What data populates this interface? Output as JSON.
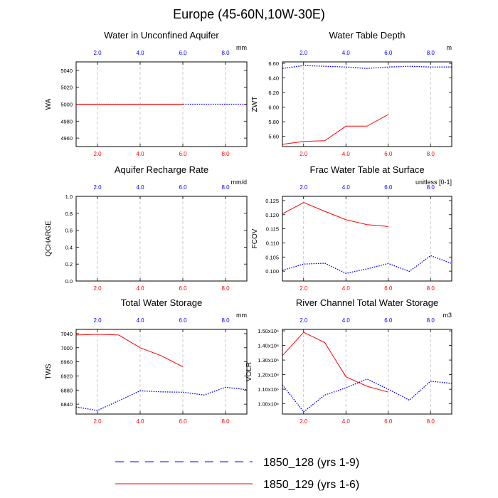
{
  "figure": {
    "title": "Europe (45-60N,10W-30E)"
  },
  "colors": {
    "red": "#ff0000",
    "blue": "#0000ff",
    "grid": "#bbbbbb"
  },
  "legend": {
    "items": [
      {
        "label": "1850_128 (yrs 1-9)",
        "style": "dashed",
        "color": "#0000ff"
      },
      {
        "label": "1850_129 (yrs 1-6)",
        "style": "solid",
        "color": "#ff0000"
      }
    ]
  },
  "chart_data": [
    {
      "type": "line",
      "title": "Water in Unconfined Aquifer",
      "ylabel": "WA",
      "units": "mm",
      "xlim": [
        1,
        9
      ],
      "ylim": [
        4950,
        5050
      ],
      "xticks": [
        2,
        4,
        6,
        8
      ],
      "xtick_labels": [
        "2.0",
        "4.0",
        "6.0",
        "8.0"
      ],
      "yticks": [
        4960,
        4980,
        5000,
        5020,
        5040
      ],
      "ytick_labels": [
        "4960",
        "4980",
        "5000",
        "5020",
        "5040"
      ],
      "series": [
        {
          "color": "#0000ff",
          "style": "dotted",
          "x": [
            1,
            2,
            3,
            4,
            5,
            6,
            7,
            8,
            9
          ],
          "y": [
            5000,
            5000,
            5000,
            5000,
            5000,
            5000,
            5000,
            5000,
            5000
          ]
        },
        {
          "color": "#ff0000",
          "style": "solid",
          "x": [
            1,
            2,
            3,
            4,
            5,
            6
          ],
          "y": [
            5000,
            5000,
            5000,
            5000,
            5000,
            5000
          ]
        }
      ]
    },
    {
      "type": "line",
      "title": "Water Table Depth",
      "ylabel": "ZWT",
      "units": "m",
      "xlim": [
        1,
        9
      ],
      "ylim": [
        5.46,
        6.62
      ],
      "xticks": [
        2,
        4,
        6,
        8
      ],
      "xtick_labels": [
        "2.0",
        "4.0",
        "6.0",
        "8.0"
      ],
      "yticks": [
        5.6,
        5.8,
        6.0,
        6.2,
        6.4,
        6.6
      ],
      "ytick_labels": [
        "5.60",
        "5.80",
        "6.00",
        "6.20",
        "6.40",
        "6.60"
      ],
      "series": [
        {
          "color": "#0000ff",
          "style": "dotted",
          "x": [
            1,
            2,
            3,
            4,
            5,
            6,
            7,
            8,
            9
          ],
          "y": [
            6.53,
            6.57,
            6.56,
            6.55,
            6.53,
            6.55,
            6.56,
            6.55,
            6.55
          ]
        },
        {
          "color": "#ff0000",
          "style": "solid",
          "x": [
            1,
            2,
            3,
            4,
            5,
            6
          ],
          "y": [
            5.49,
            5.53,
            5.54,
            5.74,
            5.74,
            5.9
          ]
        }
      ]
    },
    {
      "type": "line",
      "title": "Aquifer Recharge Rate",
      "ylabel": "QCHARGE",
      "units": "mm/d",
      "xlim": [
        1,
        9
      ],
      "ylim": [
        0,
        1
      ],
      "xticks": [
        2,
        4,
        6,
        8
      ],
      "xtick_labels": [
        "2.0",
        "4.0",
        "6.0",
        "8.0"
      ],
      "yticks": [
        0,
        0.2,
        0.4,
        0.6,
        0.8,
        1.0
      ],
      "ytick_labels": [
        "0.0",
        "0.2",
        "0.4",
        "0.6",
        "0.8",
        "1.0"
      ],
      "series": []
    },
    {
      "type": "line",
      "title": "Frac Water Table at Surface",
      "ylabel": "FCOV",
      "units": "unitless [0-1]",
      "xlim": [
        1,
        9
      ],
      "ylim": [
        0.0965,
        0.1265
      ],
      "xticks": [
        2,
        4,
        6,
        8
      ],
      "xtick_labels": [
        "2.0",
        "4.0",
        "6.0",
        "8.0"
      ],
      "yticks": [
        0.1,
        0.105,
        0.11,
        0.115,
        0.12,
        0.125
      ],
      "ytick_labels": [
        "0.100",
        "0.105",
        "0.110",
        "0.115",
        "0.120",
        "0.125"
      ],
      "series": [
        {
          "color": "#0000ff",
          "style": "dotted",
          "x": [
            1,
            2,
            3,
            4,
            5,
            6,
            7,
            8,
            9
          ],
          "y": [
            0.1003,
            0.1025,
            0.1028,
            0.0992,
            0.1008,
            0.1027,
            0.0999,
            0.1055,
            0.1027
          ]
        },
        {
          "color": "#ff0000",
          "style": "solid",
          "x": [
            1,
            2,
            3,
            4,
            5,
            6
          ],
          "y": [
            0.1203,
            0.1243,
            0.1212,
            0.1182,
            0.1165,
            0.1158
          ]
        }
      ]
    },
    {
      "type": "line",
      "title": "Total Water Storage",
      "ylabel": "TWS",
      "units": "mm",
      "xlim": [
        1,
        9
      ],
      "ylim": [
        6812,
        7052
      ],
      "xticks": [
        2,
        4,
        6,
        8
      ],
      "xtick_labels": [
        "2.0",
        "4.0",
        "6.0",
        "8.0"
      ],
      "yticks": [
        6840,
        6880,
        6920,
        6960,
        7000,
        7040
      ],
      "ytick_labels": [
        "6840",
        "6880",
        "6920",
        "6960",
        "7000",
        "7040"
      ],
      "series": [
        {
          "color": "#0000ff",
          "style": "dotted",
          "x": [
            1,
            2,
            3,
            4,
            5,
            6,
            7,
            8,
            9
          ],
          "y": [
            6832,
            6822,
            6850,
            6878,
            6875,
            6874,
            6866,
            6888,
            6881
          ]
        },
        {
          "color": "#ff0000",
          "style": "solid",
          "x": [
            1,
            2,
            3,
            4,
            5,
            6
          ],
          "y": [
            7036,
            7038,
            7036,
            7000,
            6977,
            6946
          ]
        }
      ]
    },
    {
      "type": "line",
      "title": "River Channel Total Water Storage",
      "ylabel": "VOLR",
      "units": "m3",
      "xlim": [
        1,
        9
      ],
      "ylim": [
        930000,
        1510000
      ],
      "xticks": [
        2,
        4,
        6,
        8
      ],
      "xtick_labels": [
        "2.0",
        "4.0",
        "6.0",
        "8.0"
      ],
      "yticks": [
        1000000,
        1100000,
        1200000,
        1300000,
        1400000,
        1500000
      ],
      "ytick_mantissas": [
        "1.00",
        "1.10",
        "1.20",
        "1.30",
        "1.40",
        "1.50"
      ],
      "ytick_suffix": "x10⁶",
      "series": [
        {
          "color": "#0000ff",
          "style": "dotted",
          "x": [
            1,
            2,
            3,
            4,
            5,
            6,
            7,
            8,
            9
          ],
          "y": [
            1130000,
            945000,
            1060000,
            1110000,
            1170000,
            1100000,
            1025000,
            1155000,
            1140000
          ]
        },
        {
          "color": "#ff0000",
          "style": "solid",
          "x": [
            1,
            2,
            3,
            4,
            5,
            6
          ],
          "y": [
            1330000,
            1490000,
            1420000,
            1185000,
            1120000,
            1080000
          ]
        }
      ]
    }
  ]
}
